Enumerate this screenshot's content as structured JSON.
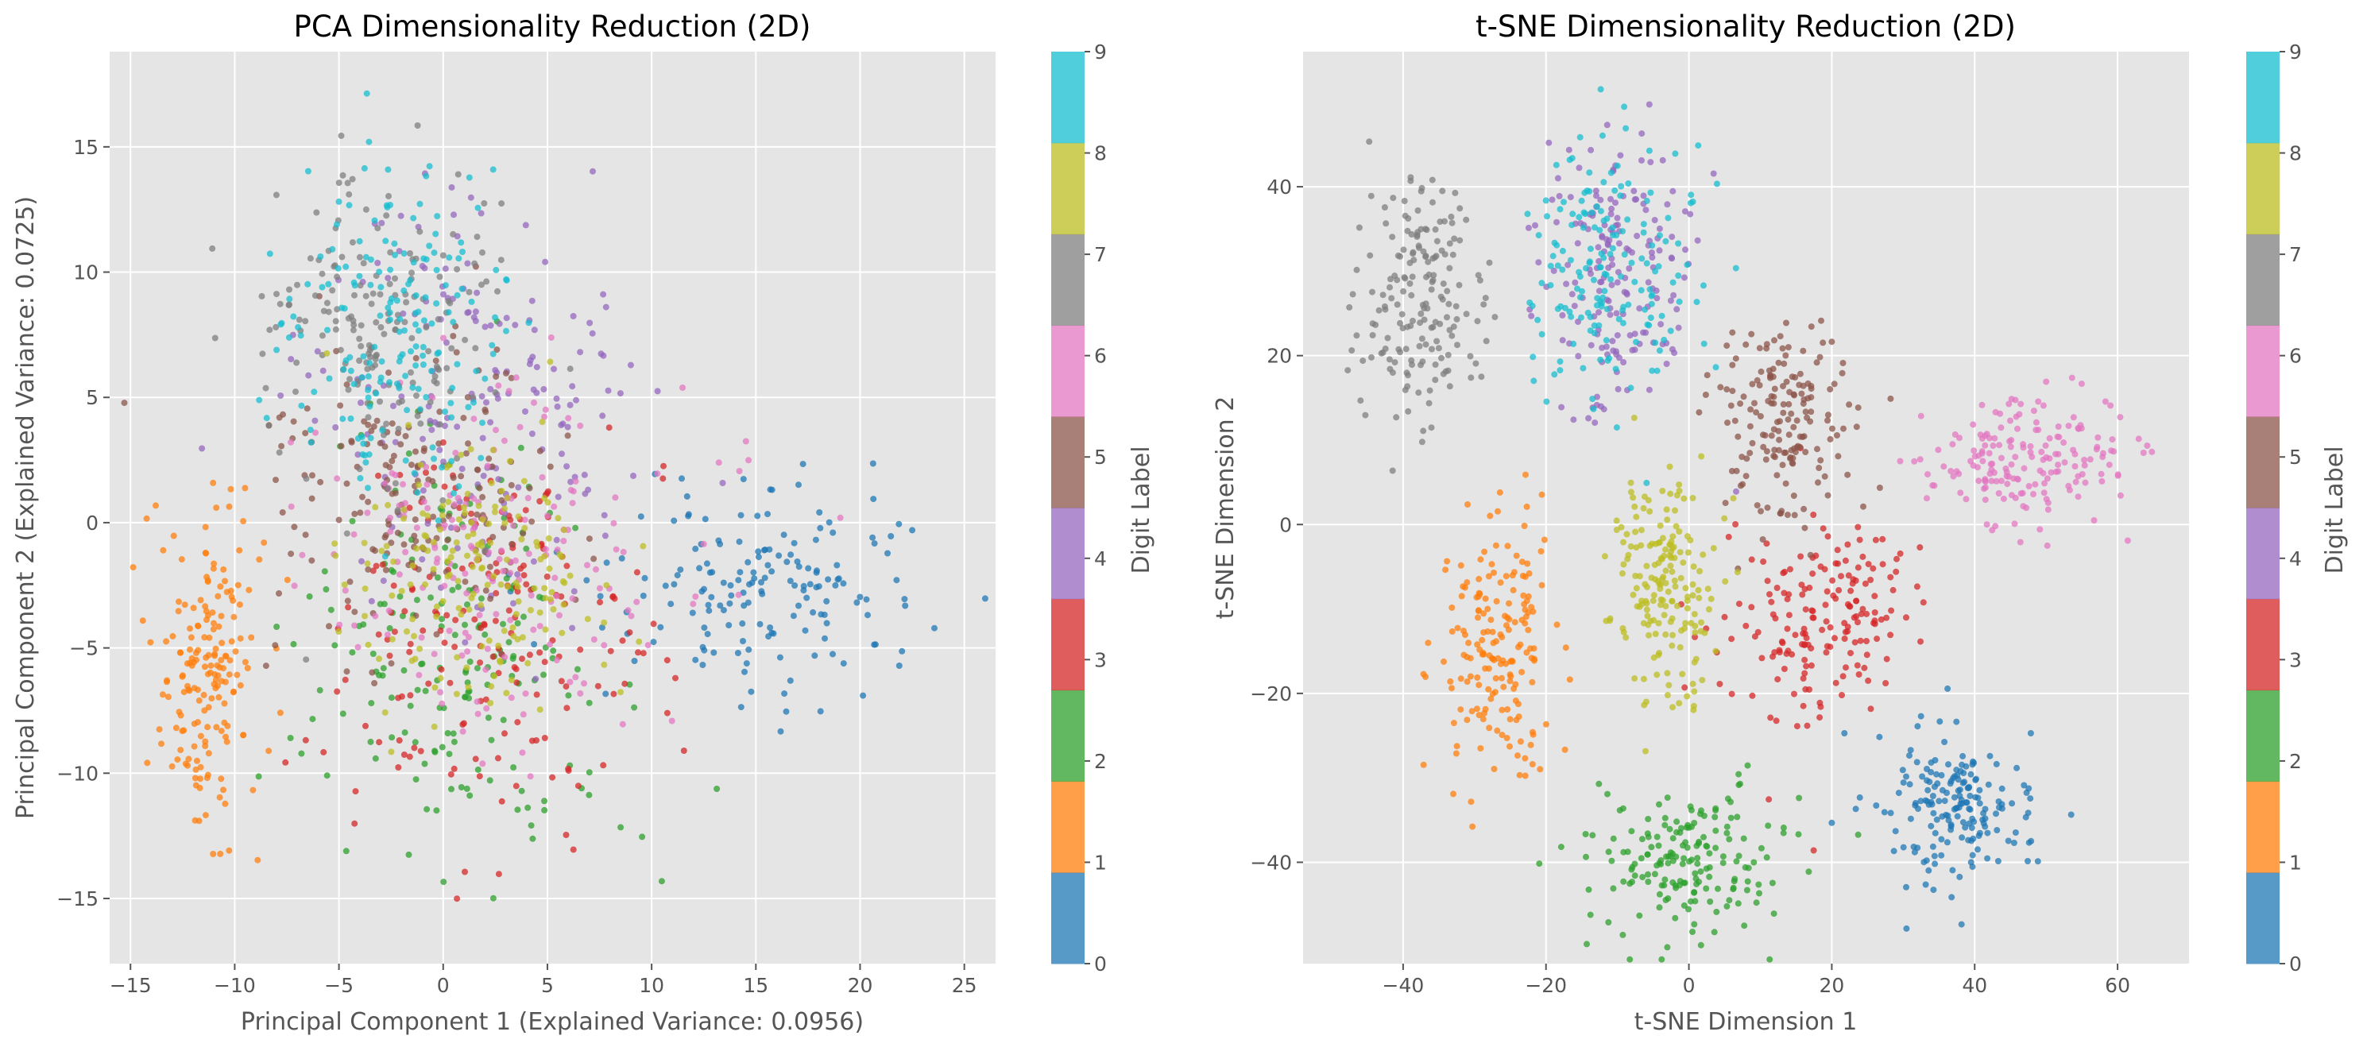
{
  "chart_data": [
    {
      "type": "scatter",
      "title": "PCA Dimensionality Reduction (2D)",
      "xlabel": "Principal Component 1 (Explained Variance: 0.0956)",
      "ylabel": "Principal Component 2 (Explained Variance: 0.0725)",
      "xlim": [
        -16,
        26.5
      ],
      "ylim": [
        -17.6,
        18.8
      ],
      "xticks": [
        -15,
        -10,
        -5,
        0,
        5,
        10,
        15,
        20,
        25
      ],
      "yticks": [
        -15,
        -10,
        -5,
        0,
        5,
        10,
        15
      ],
      "grid": true,
      "colorbar": {
        "label": "Digit Label",
        "ticks": [
          0,
          1,
          2,
          3,
          4,
          5,
          6,
          7,
          8,
          9
        ]
      },
      "series": [
        {
          "digit": 0,
          "cx": 15.5,
          "cy": -2.5,
          "sx": 4.2,
          "sy": 2.2,
          "n": 170
        },
        {
          "digit": 1,
          "cx": -11.5,
          "cy": -6.0,
          "sx": 1.3,
          "sy": 3.0,
          "n": 180
        },
        {
          "digit": 2,
          "cx": 0.5,
          "cy": -5.5,
          "sx": 3.6,
          "sy": 4.2,
          "n": 180
        },
        {
          "digit": 3,
          "cx": 2.5,
          "cy": -4.5,
          "sx": 4.0,
          "sy": 3.6,
          "n": 180
        },
        {
          "digit": 4,
          "cx": 1.5,
          "cy": 4.5,
          "sx": 4.0,
          "sy": 4.0,
          "n": 180
        },
        {
          "digit": 5,
          "cx": -1.5,
          "cy": 1.0,
          "sx": 3.6,
          "sy": 3.2,
          "n": 180
        },
        {
          "digit": 6,
          "cx": 2.0,
          "cy": -1.0,
          "sx": 4.6,
          "sy": 3.6,
          "n": 180
        },
        {
          "digit": 7,
          "cx": -3.0,
          "cy": 8.0,
          "sx": 2.8,
          "sy": 3.2,
          "n": 180
        },
        {
          "digit": 8,
          "cx": 1.0,
          "cy": -2.0,
          "sx": 3.2,
          "sy": 3.0,
          "n": 170
        },
        {
          "digit": 9,
          "cx": -2.0,
          "cy": 7.5,
          "sx": 2.8,
          "sy": 3.0,
          "n": 180
        }
      ]
    },
    {
      "type": "scatter",
      "title": "t-SNE Dimensionality Reduction (2D)",
      "xlabel": "t-SNE Dimension 1",
      "ylabel": "t-SNE Dimension 2",
      "xlim": [
        -54,
        70
      ],
      "ylim": [
        -52,
        56
      ],
      "xticks": [
        -40,
        -20,
        0,
        20,
        40,
        60
      ],
      "yticks": [
        -40,
        -20,
        0,
        20,
        40
      ],
      "grid": true,
      "colorbar": {
        "label": "Digit Label",
        "ticks": [
          0,
          1,
          2,
          3,
          4,
          5,
          6,
          7,
          8,
          9
        ]
      },
      "series": [
        {
          "digit": 0,
          "cx": 36,
          "cy": -34,
          "sx": 5.5,
          "sy": 5.0,
          "n": 180
        },
        {
          "digit": 1,
          "cx": -27,
          "cy": -15,
          "sx": 4.5,
          "sy": 9.0,
          "n": 180
        },
        {
          "digit": 2,
          "cx": -1,
          "cy": -40,
          "sx": 7.5,
          "sy": 4.5,
          "n": 180
        },
        {
          "digit": 3,
          "cx": 18,
          "cy": -12,
          "sx": 6.5,
          "sy": 6.5,
          "n": 180
        },
        {
          "digit": 4,
          "cx": -10,
          "cy": 30,
          "sx": 5.5,
          "sy": 8.0,
          "n": 180
        },
        {
          "digit": 5,
          "cx": 14,
          "cy": 12,
          "sx": 5.0,
          "sy": 6.0,
          "n": 170
        },
        {
          "digit": 6,
          "cx": 47,
          "cy": 8,
          "sx": 7.0,
          "sy": 3.5,
          "n": 180
        },
        {
          "digit": 7,
          "cx": -38,
          "cy": 27,
          "sx": 4.5,
          "sy": 8.0,
          "n": 180
        },
        {
          "digit": 8,
          "cx": -3,
          "cy": -7,
          "sx": 3.5,
          "sy": 6.5,
          "n": 180
        },
        {
          "digit": 9,
          "cx": -12,
          "cy": 30,
          "sx": 6.5,
          "sy": 8.0,
          "n": 170
        }
      ]
    }
  ],
  "palette": [
    "#1f77b4",
    "#ff7f0e",
    "#2ca02c",
    "#d62728",
    "#9467bd",
    "#8c564b",
    "#e377c2",
    "#7f7f7f",
    "#bcbd22",
    "#17becf"
  ],
  "plot_background": "#e5e5e5"
}
